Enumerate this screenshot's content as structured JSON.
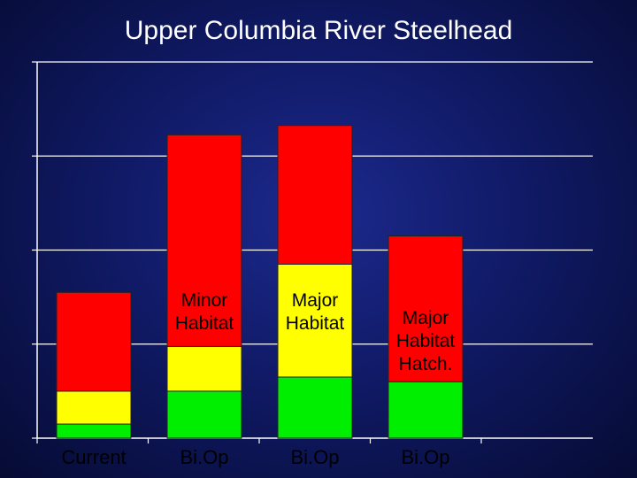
{
  "title": "Upper Columbia River Steelhead",
  "chart_data": {
    "type": "bar",
    "stacked": true,
    "categories": [
      "Current",
      "Bi.Op",
      "Bi.Op",
      "Bi.Op"
    ],
    "series": [
      {
        "color": "#00ee00",
        "values": [
          0.3,
          1.0,
          1.3,
          1.2
        ]
      },
      {
        "color": "#ffff00",
        "values": [
          0.7,
          0.95,
          2.4,
          0.0
        ]
      },
      {
        "color": "#ff0000",
        "values": [
          2.1,
          4.5,
          2.95,
          3.1
        ]
      }
    ],
    "segment_labels": [
      {
        "bar": 1,
        "text": [
          "Minor",
          "Habitat"
        ]
      },
      {
        "bar": 2,
        "text": [
          "Major",
          "Habitat"
        ]
      },
      {
        "bar": 3,
        "text": [
          "Major",
          "Habitat",
          "Hatch."
        ]
      }
    ],
    "ylim": [
      0,
      8
    ],
    "yticks": [
      0,
      2,
      4,
      6,
      8
    ],
    "grid": true,
    "xlabel": "",
    "ylabel": ""
  }
}
